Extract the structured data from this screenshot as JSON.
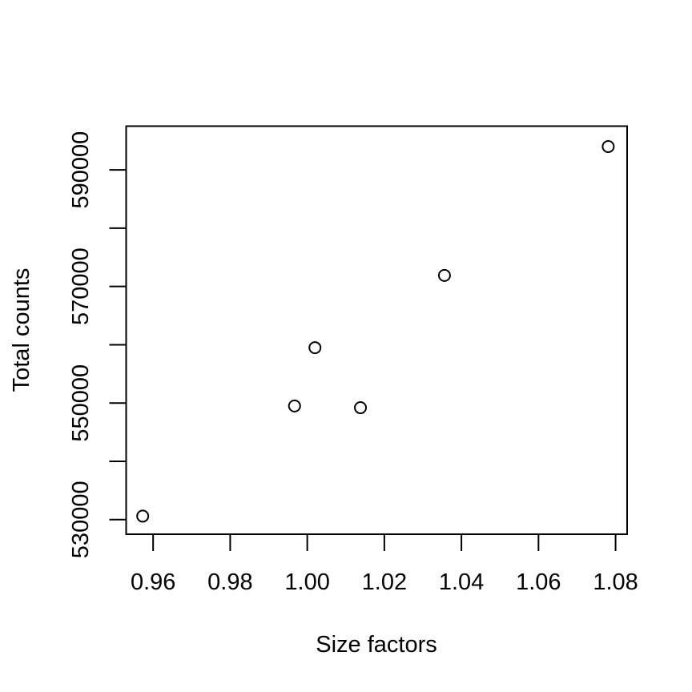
{
  "chart_data": {
    "type": "scatter",
    "title": "",
    "xlabel": "Size factors",
    "ylabel": "Total counts",
    "xlim": [
      0.953,
      1.083
    ],
    "ylim": [
      527500,
      597500
    ],
    "x_ticks": [
      0.96,
      0.98,
      1.0,
      1.02,
      1.04,
      1.06,
      1.08
    ],
    "x_tick_labels": [
      "0.96",
      "0.98",
      "1.00",
      "1.02",
      "1.04",
      "1.06",
      "1.08"
    ],
    "y_ticks": [
      530000,
      540000,
      550000,
      560000,
      570000,
      580000,
      590000
    ],
    "y_tick_labels": [
      "530000",
      "",
      "550000",
      "",
      "570000",
      "",
      "590000"
    ],
    "points": [
      {
        "x": 0.9573,
        "y": 530600
      },
      {
        "x": 0.9967,
        "y": 549500
      },
      {
        "x": 1.002,
        "y": 559500
      },
      {
        "x": 1.0138,
        "y": 549200
      },
      {
        "x": 1.0356,
        "y": 571900
      },
      {
        "x": 1.0781,
        "y": 594000
      }
    ],
    "marker": "open-circle",
    "grid": false,
    "legend": "none",
    "colors": {
      "stroke": "#000000",
      "background": "#ffffff"
    }
  }
}
